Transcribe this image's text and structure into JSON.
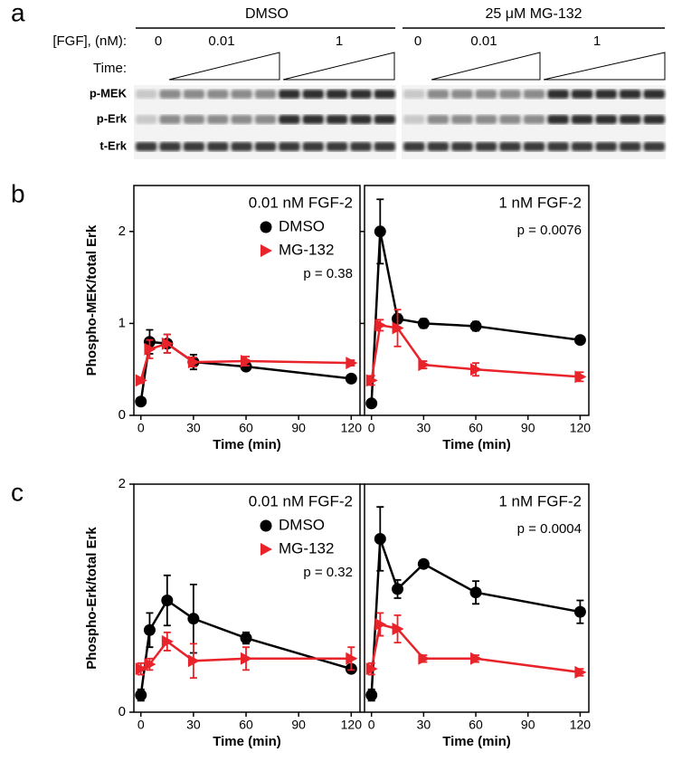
{
  "panel_labels": [
    "a",
    "b",
    "c"
  ],
  "blot": {
    "groups": [
      "DMSO",
      "25 μM MG-132"
    ],
    "fgf_label": "[FGF], (nM):",
    "time_label": "Time:",
    "doses": [
      "0",
      "0.01",
      "1",
      "0",
      "0.01",
      "1"
    ],
    "rows": [
      "p-MEK",
      "p-Erk",
      "t-Erk"
    ]
  },
  "chart_data": [
    {
      "type": "line",
      "title": "0.01 nM FGF-2",
      "annotation": "p = 0.38",
      "ylabel": "Phospho-MEK/total Erk",
      "xlabel": "Time (min)",
      "x": [
        0,
        5,
        15,
        30,
        60,
        120
      ],
      "xlim": [
        -4,
        125
      ],
      "xticks": [
        0,
        30,
        60,
        90,
        120
      ],
      "ylim": [
        0,
        2.5
      ],
      "yticks": [
        0,
        1,
        2
      ],
      "legend": true,
      "series": [
        {
          "name": "DMSO",
          "color": "#000000",
          "marker": "circle",
          "values": [
            0.15,
            0.8,
            0.78,
            0.58,
            0.53,
            0.4
          ],
          "errors": [
            0.03,
            0.13,
            0.1,
            0.08,
            0.03,
            0.03
          ]
        },
        {
          "name": "MG-132",
          "color": "#e8232a",
          "marker": "triangle-right",
          "values": [
            0.38,
            0.72,
            0.78,
            0.58,
            0.59,
            0.57
          ],
          "errors": [
            0.03,
            0.1,
            0.1,
            0.05,
            0.05,
            0.03
          ]
        }
      ]
    },
    {
      "type": "line",
      "title": "1 nM FGF-2",
      "annotation": "p = 0.0076",
      "xlabel": "Time (min)",
      "x": [
        0,
        5,
        15,
        30,
        60,
        120
      ],
      "xlim": [
        -4,
        125
      ],
      "xticks": [
        0,
        30,
        60,
        90,
        120
      ],
      "ylim": [
        0,
        2.5
      ],
      "yticks": [
        0,
        1,
        2
      ],
      "legend": false,
      "series": [
        {
          "color": "#000000",
          "marker": "circle",
          "values": [
            0.13,
            2.0,
            1.05,
            1.0,
            0.97,
            0.82
          ],
          "errors": [
            0.03,
            0.35,
            0.05,
            0.05,
            0.05,
            0.04
          ]
        },
        {
          "color": "#e8232a",
          "marker": "triangle-right",
          "values": [
            0.38,
            0.98,
            0.95,
            0.55,
            0.5,
            0.42
          ],
          "errors": [
            0.05,
            0.06,
            0.2,
            0.04,
            0.07,
            0.05
          ]
        }
      ]
    },
    {
      "type": "line",
      "title": "0.01 nM FGF-2",
      "annotation": "p = 0.32",
      "ylabel": "Phospho-Erk/total Erk",
      "xlabel": "Time (min)",
      "x": [
        0,
        5,
        15,
        30,
        60,
        120
      ],
      "xlim": [
        -4,
        125
      ],
      "xticks": [
        0,
        30,
        60,
        90,
        120
      ],
      "ylim": [
        0,
        2
      ],
      "yticks": [
        0,
        2
      ],
      "legend": true,
      "series": [
        {
          "name": "DMSO",
          "color": "#000000",
          "marker": "circle",
          "values": [
            0.15,
            0.72,
            0.98,
            0.82,
            0.65,
            0.38
          ],
          "errors": [
            0.05,
            0.15,
            0.22,
            0.3,
            0.05,
            0.03
          ]
        },
        {
          "name": "MG-132",
          "color": "#e8232a",
          "marker": "triangle-right",
          "values": [
            0.38,
            0.42,
            0.62,
            0.45,
            0.47,
            0.47
          ],
          "errors": [
            0.05,
            0.05,
            0.08,
            0.15,
            0.1,
            0.1
          ]
        }
      ]
    },
    {
      "type": "line",
      "title": "1 nM FGF-2",
      "annotation": "p = 0.0004",
      "xlabel": "Time (min)",
      "x": [
        0,
        5,
        15,
        30,
        60,
        120
      ],
      "xlim": [
        -4,
        125
      ],
      "xticks": [
        0,
        30,
        60,
        90,
        120
      ],
      "ylim": [
        0,
        2
      ],
      "yticks": [
        0,
        2
      ],
      "legend": false,
      "series": [
        {
          "color": "#000000",
          "marker": "circle",
          "values": [
            0.15,
            1.52,
            1.08,
            1.3,
            1.05,
            0.88
          ],
          "errors": [
            0.05,
            0.28,
            0.08,
            0.03,
            0.1,
            0.1
          ]
        },
        {
          "color": "#e8232a",
          "marker": "triangle-right",
          "values": [
            0.38,
            0.77,
            0.73,
            0.47,
            0.47,
            0.35
          ],
          "errors": [
            0.05,
            0.1,
            0.12,
            0.03,
            0.03,
            0.03
          ]
        }
      ]
    }
  ]
}
